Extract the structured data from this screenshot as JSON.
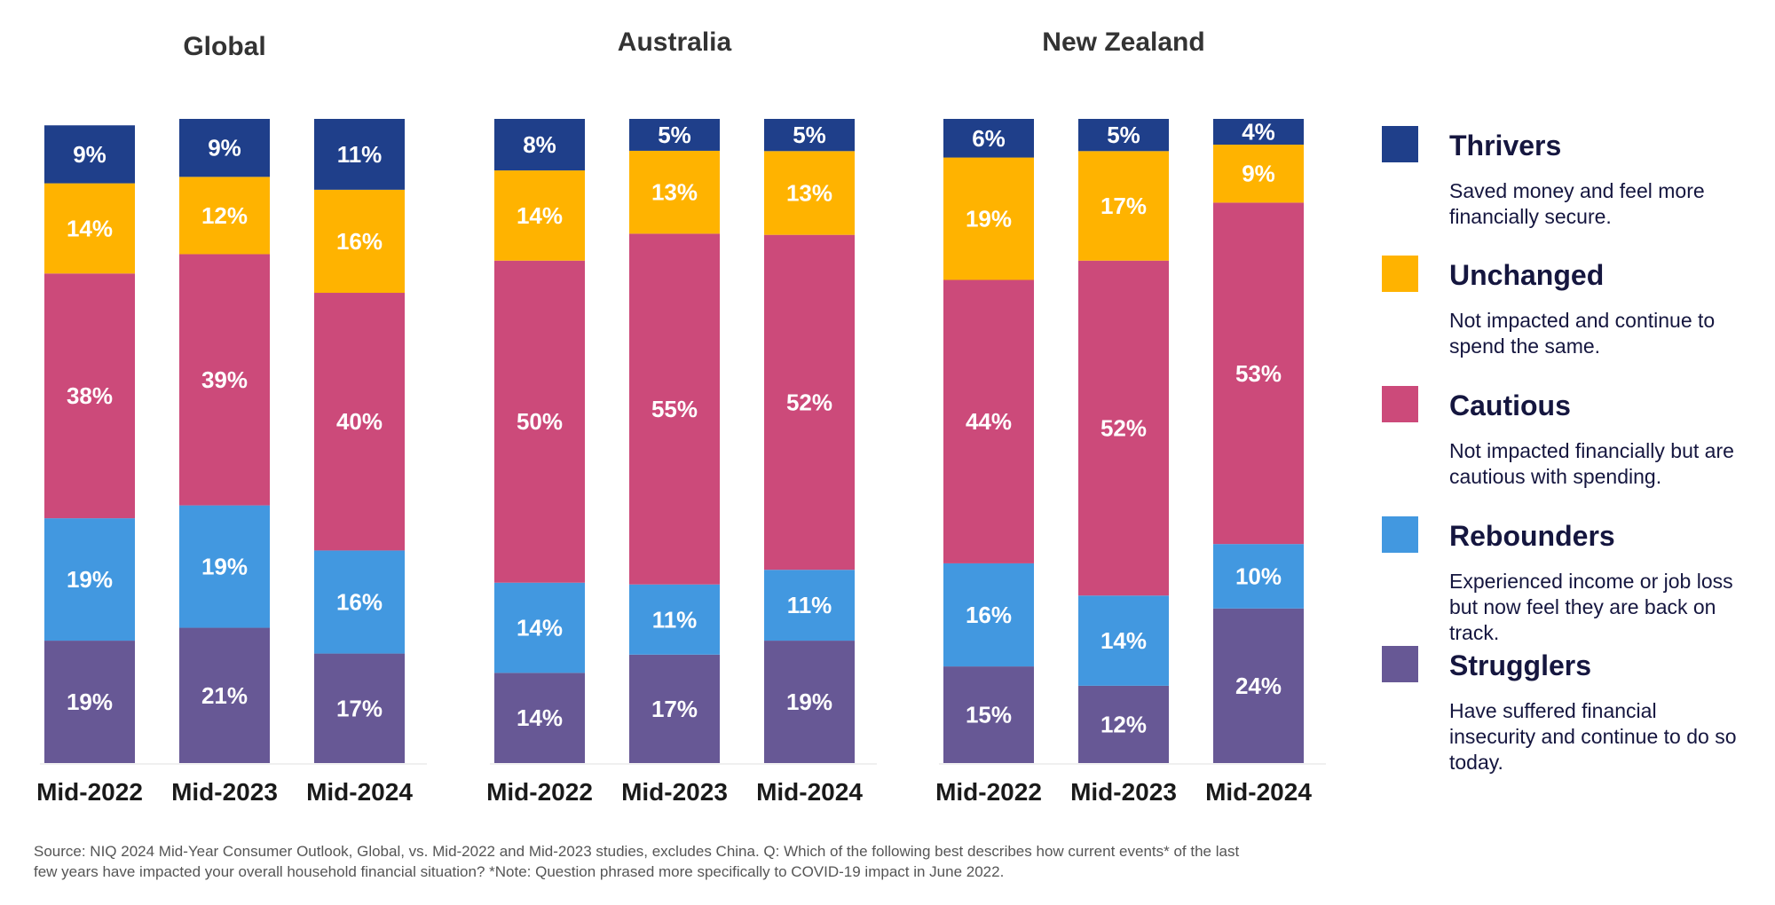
{
  "chart_data": [
    {
      "type": "bar",
      "stacked": true,
      "title": "Global",
      "categories": [
        "Mid-2022",
        "Mid-2023",
        "Mid-2024"
      ],
      "ylim": [
        0,
        100
      ],
      "series": [
        {
          "name": "Strugglers",
          "values": [
            19,
            21,
            17
          ]
        },
        {
          "name": "Rebounders",
          "values": [
            19,
            19,
            16
          ]
        },
        {
          "name": "Cautious",
          "values": [
            38,
            39,
            40
          ]
        },
        {
          "name": "Unchanged",
          "values": [
            14,
            12,
            16
          ]
        },
        {
          "name": "Thrivers",
          "values": [
            9,
            9,
            11
          ]
        }
      ],
      "labels": [
        [
          "19%",
          "21%",
          "17%"
        ],
        [
          "19%",
          "19%",
          "16%"
        ],
        [
          "38%",
          "39%",
          "40%"
        ],
        [
          "14%",
          "12%",
          "16%"
        ],
        [
          "9%",
          "9%",
          "11%"
        ]
      ]
    },
    {
      "type": "bar",
      "stacked": true,
      "title": "Australia",
      "categories": [
        "Mid-2022",
        "Mid-2023",
        "Mid-2024"
      ],
      "ylim": [
        0,
        100
      ],
      "series": [
        {
          "name": "Strugglers",
          "values": [
            14,
            17,
            19
          ]
        },
        {
          "name": "Rebounders",
          "values": [
            14,
            11,
            11
          ]
        },
        {
          "name": "Cautious",
          "values": [
            50,
            55,
            52
          ]
        },
        {
          "name": "Unchanged",
          "values": [
            14,
            13,
            13
          ]
        },
        {
          "name": "Thrivers",
          "values": [
            8,
            5,
            5
          ]
        }
      ],
      "labels": [
        [
          "14%",
          "17%",
          "19%"
        ],
        [
          "14%",
          "11%",
          "11%"
        ],
        [
          "50%",
          "55%",
          "52%"
        ],
        [
          "14%",
          "13%",
          "13%"
        ],
        [
          "8%",
          "5%",
          "5%"
        ]
      ]
    },
    {
      "type": "bar",
      "stacked": true,
      "title": "New Zealand",
      "categories": [
        "Mid-2022",
        "Mid-2023",
        "Mid-2024"
      ],
      "ylim": [
        0,
        100
      ],
      "series": [
        {
          "name": "Strugglers",
          "values": [
            15,
            12,
            24
          ]
        },
        {
          "name": "Rebounders",
          "values": [
            16,
            14,
            10
          ]
        },
        {
          "name": "Cautious",
          "values": [
            44,
            52,
            53
          ]
        },
        {
          "name": "Unchanged",
          "values": [
            19,
            17,
            9
          ]
        },
        {
          "name": "Thrivers",
          "values": [
            6,
            5,
            4
          ]
        }
      ],
      "labels": [
        [
          "15%",
          "12%",
          "24%"
        ],
        [
          "16%",
          "14%",
          "10%"
        ],
        [
          "44%",
          "52%",
          "53%"
        ],
        [
          "19%",
          "17%",
          "9%"
        ],
        [
          "6%",
          "5%",
          "4%"
        ]
      ]
    }
  ],
  "legend": {
    "placement": "right",
    "items": [
      {
        "name": "Thrivers",
        "color": "#1f3f8a",
        "desc": [
          "Saved money and feel more",
          "financially secure."
        ]
      },
      {
        "name": "Unchanged",
        "color": "#ffb300",
        "desc": [
          "Not impacted and continue to",
          "spend the same."
        ]
      },
      {
        "name": "Cautious",
        "color": "#cc4a7a",
        "desc": [
          "Not impacted financially but are",
          "cautious with spending."
        ]
      },
      {
        "name": "Rebounders",
        "color": "#4298e0",
        "desc": [
          "Experienced income or job loss",
          "but now feel they are back on",
          "track."
        ]
      },
      {
        "name": "Strugglers",
        "color": "#675895",
        "desc": [
          "Have suffered financial",
          "insecurity and continue to do so",
          "today."
        ]
      }
    ]
  },
  "source_lines": [
    "Source: NIQ 2024 Mid-Year Consumer Outlook, Global, vs. Mid-2022 and Mid-2023 studies, excludes China. Q: Which of the following best describes how current events* of the last",
    "few years have impacted your overall household financial situation? *Note: Question phrased more specifically to COVID-19 impact in June 2022."
  ]
}
